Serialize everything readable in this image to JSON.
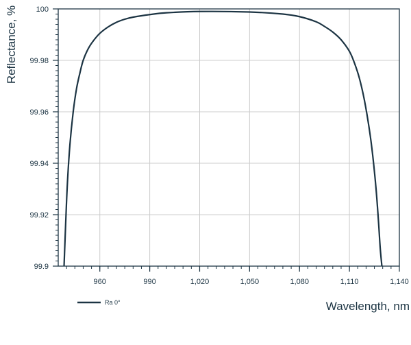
{
  "chart_data": {
    "type": "line",
    "title": "",
    "xlabel": "Wavelength, nm",
    "ylabel": "Reflectance, %",
    "xlim": [
      935,
      1140
    ],
    "ylim": [
      99.9,
      100
    ],
    "x_ticks": [
      960,
      990,
      1020,
      1050,
      1080,
      1110,
      1140
    ],
    "x_tick_labels": [
      "960",
      "990",
      "1,020",
      "1,050",
      "1,080",
      "1,110",
      "1,140"
    ],
    "y_ticks": [
      99.9,
      99.92,
      99.94,
      99.96,
      99.98,
      100
    ],
    "y_tick_labels": [
      "99.9",
      "99.92",
      "99.94",
      "99.96",
      "99.98",
      "100"
    ],
    "grid": true,
    "legend_position": "bottom-left",
    "line_color": "#1c3443",
    "grid_color": "#cccccc",
    "series": [
      {
        "name": "Ra 0°",
        "x": [
          938.5,
          939.5,
          940.5,
          942,
          944,
          946,
          948,
          950,
          953,
          956,
          960,
          965,
          970,
          975,
          980,
          990,
          1000,
          1020,
          1050,
          1070,
          1080,
          1090,
          1095,
          1100,
          1105,
          1110,
          1113,
          1116,
          1119,
          1122,
          1124,
          1126,
          1127.5,
          1128.5,
          1129.5
        ],
        "y": [
          99.9,
          99.917,
          99.932,
          99.947,
          99.96,
          99.969,
          99.975,
          99.98,
          99.9845,
          99.9875,
          99.9905,
          99.993,
          99.9948,
          99.996,
          99.9968,
          99.9978,
          99.9985,
          99.999,
          99.9988,
          99.998,
          99.997,
          99.995,
          99.9932,
          99.991,
          99.988,
          99.9835,
          99.979,
          99.973,
          99.9645,
          99.953,
          99.943,
          99.93,
          99.917,
          99.907,
          99.9
        ]
      }
    ]
  }
}
